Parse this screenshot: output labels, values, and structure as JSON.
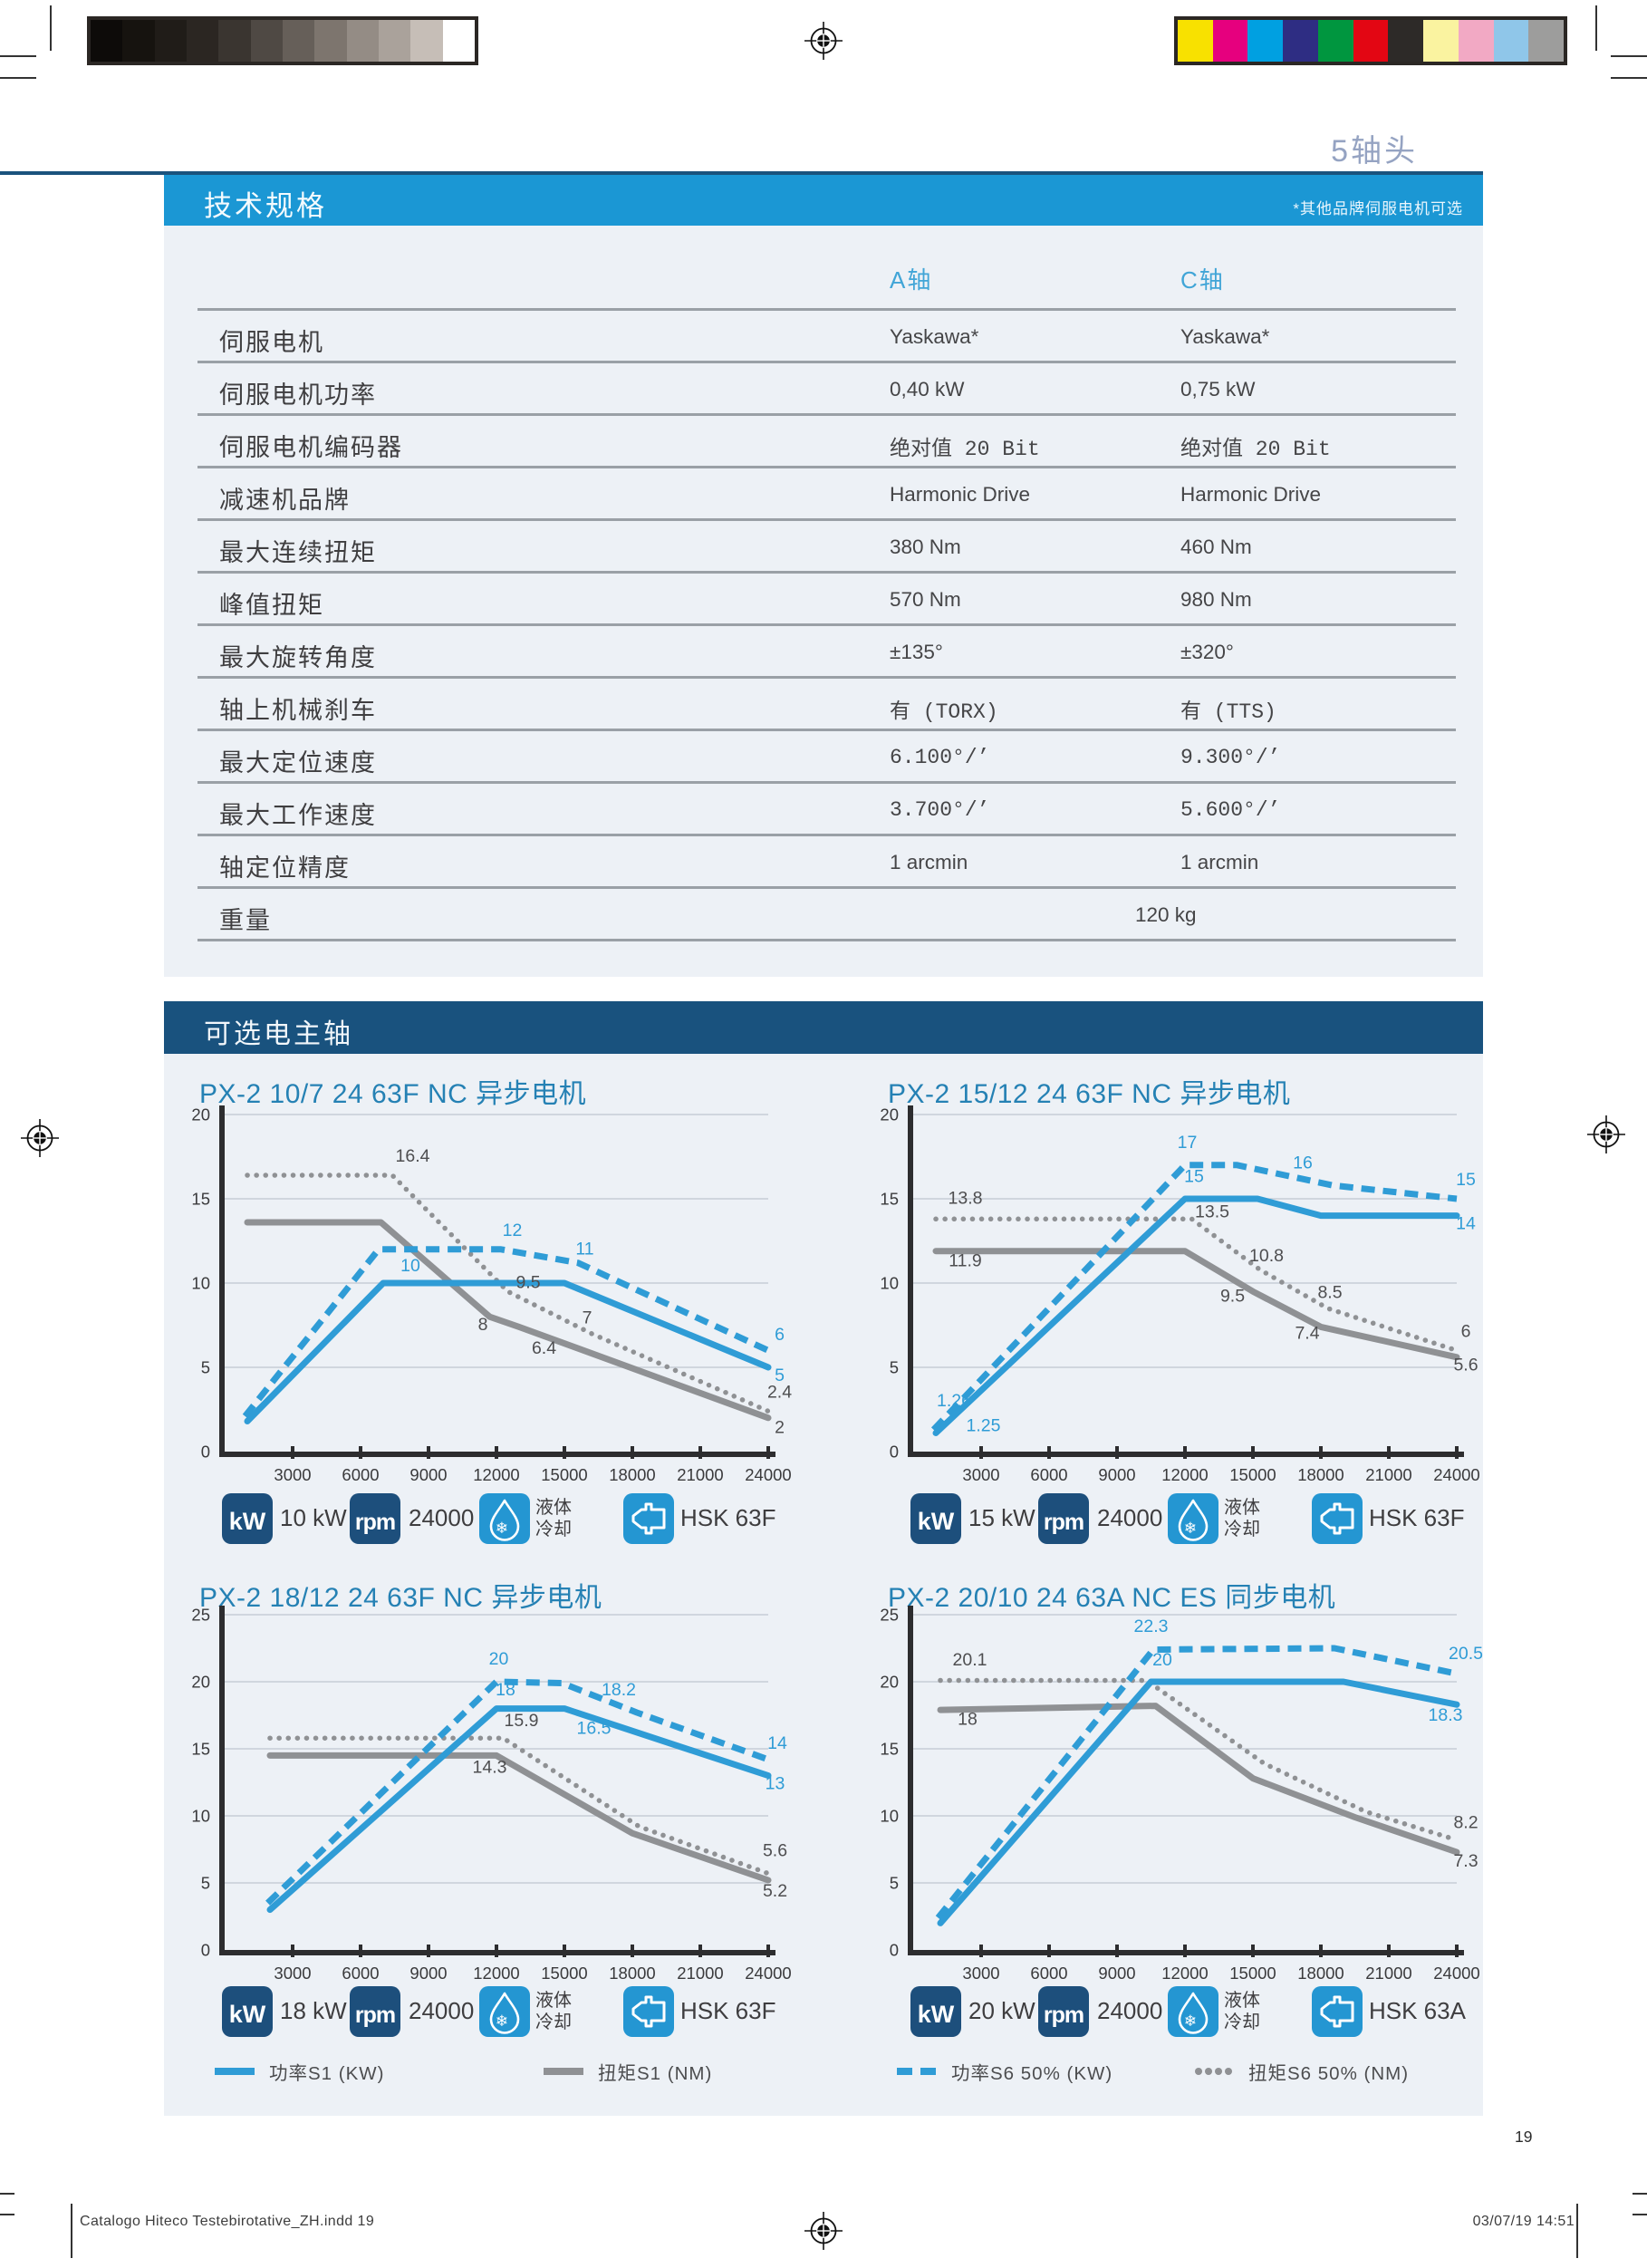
{
  "page": {
    "title": "5轴头",
    "number": "19",
    "footer_left": "Catalogo Hiteco Testebirotative_ZH.indd   19",
    "footer_right": "03/07/19   14:51"
  },
  "colors": {
    "accent_blue": "#1b97d4",
    "navy": "#19527e",
    "rule_navy": "#1a537d",
    "panel_bg": "#edf1f6",
    "curve_blue": "#2f9cd6",
    "curve_gray": "#8f9194",
    "title_blue": "#2581b4",
    "axis_dark": "#2d2d2f",
    "grid_line": "#c7cdd5",
    "value_label_gray": "#4e4e50",
    "column_header_blue": "#41a5d7",
    "page_title_blue": "#95a3c2",
    "icon_navy": "#1d4f7c",
    "icon_blue": "#2496d2"
  },
  "print_marks": {
    "grayscale": [
      "#0d0b09",
      "#16130f",
      "#201c18",
      "#2b2622",
      "#3a3530",
      "#4f4944",
      "#665f59",
      "#7d756e",
      "#948c85",
      "#aaa29b",
      "#c6beb7",
      "#ffffff"
    ],
    "color_patches": [
      "#f8e100",
      "#e6007e",
      "#00a0e1",
      "#2e2d83",
      "#00963f",
      "#e30613",
      "#2d2a28",
      "#faf3a0",
      "#f2a9c4",
      "#8fc6e9",
      "#9d9d9c"
    ]
  },
  "spec": {
    "header": "技术规格",
    "note": "*其他品牌伺服电机可选",
    "col_a": "A轴",
    "col_c": "C轴",
    "rows": [
      {
        "label": "伺服电机",
        "a": "Yaskawa*",
        "c": "Yaskawa*",
        "mono": false
      },
      {
        "label": "伺服电机功率",
        "a": "0,40 kW",
        "c": "0,75 kW",
        "mono": false
      },
      {
        "label": "伺服电机编码器",
        "a": "绝对值 20 Bit",
        "c": "绝对值 20 Bit",
        "mono": true
      },
      {
        "label": "减速机品牌",
        "a": "Harmonic Drive",
        "c": "Harmonic Drive",
        "mono": false
      },
      {
        "label": "最大连续扭矩",
        "a": "380 Nm",
        "c": "460 Nm",
        "mono": false
      },
      {
        "label": "峰值扭矩",
        "a": "570 Nm",
        "c": "980 Nm",
        "mono": false
      },
      {
        "label": "最大旋转角度",
        "a": "±135°",
        "c": "±320°",
        "mono": false
      },
      {
        "label": "轴上机械刹车",
        "a": "有 (TORX)",
        "c": "有 (TTS)",
        "mono": true
      },
      {
        "label": "最大定位速度",
        "a": "6.100°/’",
        "c": "9.300°/’",
        "mono": true
      },
      {
        "label": "最大工作速度",
        "a": "3.700°/’",
        "c": "5.600°/’",
        "mono": true
      },
      {
        "label": "轴定位精度",
        "a": "1 arcmin",
        "c": "1 arcmin",
        "mono": false
      }
    ],
    "weight_row": {
      "label": "重量",
      "value": "120 kg"
    }
  },
  "spindles": {
    "header": "可选电主轴",
    "legend": [
      {
        "style": "power_s1",
        "label": "功率S1 (KW)"
      },
      {
        "style": "torque_s1",
        "label": "扭矩S1 (NM)"
      },
      {
        "style": "power_s6",
        "label": "功率S6 50% (KW)"
      },
      {
        "style": "torque_s6",
        "label": "扭矩S6 50% (NM)"
      }
    ],
    "charts": [
      {
        "title": "PX-2 10/7 24 63F NC 异步电机",
        "type": "line",
        "ymax": 20,
        "yticks": [
          0,
          5,
          10,
          15,
          20
        ],
        "xticks": [
          3000,
          6000,
          9000,
          12000,
          15000,
          18000,
          21000,
          24000
        ],
        "series": [
          {
            "name": "torque_s6",
            "points": [
              [
                1000,
                16.4
              ],
              [
                7400,
                16.4
              ],
              [
                12500,
                9.5
              ],
              [
                16200,
                7
              ],
              [
                24000,
                2.4
              ]
            ]
          },
          {
            "name": "torque_s1",
            "points": [
              [
                1000,
                13.6
              ],
              [
                6900,
                13.6
              ],
              [
                11700,
                8
              ],
              [
                13000,
                7.4
              ],
              [
                24000,
                2
              ]
            ]
          },
          {
            "name": "power_s6",
            "points": [
              [
                900,
                2.1
              ],
              [
                6800,
                12
              ],
              [
                12200,
                12
              ],
              [
                15600,
                11.2
              ],
              [
                24000,
                6
              ]
            ]
          },
          {
            "name": "power_s1",
            "points": [
              [
                1000,
                1.8
              ],
              [
                7000,
                10
              ],
              [
                15000,
                10
              ],
              [
                24000,
                5
              ]
            ]
          }
        ],
        "labels": [
          {
            "text": "16.4",
            "rpm": 8300,
            "val": 17.2,
            "c": "gray"
          },
          {
            "text": "12",
            "rpm": 12700,
            "val": 12.8,
            "c": "blue"
          },
          {
            "text": "11",
            "rpm": 15900,
            "val": 11.7,
            "c": "blue"
          },
          {
            "text": "10",
            "rpm": 8200,
            "val": 10.7,
            "c": "blue"
          },
          {
            "text": "9.5",
            "rpm": 13400,
            "val": 9.7,
            "c": "gray"
          },
          {
            "text": "8",
            "rpm": 11400,
            "val": 7.2,
            "c": "gray"
          },
          {
            "text": "7",
            "rpm": 16000,
            "val": 7.6,
            "c": "gray"
          },
          {
            "text": "6.4",
            "rpm": 14100,
            "val": 5.8,
            "c": "gray"
          },
          {
            "text": "6",
            "rpm": 24500,
            "val": 6.6,
            "c": "blue"
          },
          {
            "text": "5",
            "rpm": 24500,
            "val": 4.2,
            "c": "blue"
          },
          {
            "text": "2.4",
            "rpm": 24500,
            "val": 3.2,
            "c": "gray"
          },
          {
            "text": "2",
            "rpm": 24500,
            "val": 1.1,
            "c": "gray"
          }
        ],
        "icons": {
          "kw": "10 kW",
          "rpm": "24000",
          "cooling": [
            "液体",
            "冷却"
          ],
          "holder": "HSK 63F"
        }
      },
      {
        "title": "PX-2 15/12 24 63F NC 异步电机",
        "type": "line",
        "ymax": 20,
        "yticks": [
          0,
          5,
          10,
          15,
          20
        ],
        "xticks": [
          3000,
          6000,
          9000,
          12000,
          15000,
          18000,
          21000,
          24000
        ],
        "series": [
          {
            "name": "torque_s6",
            "points": [
              [
                1000,
                13.8
              ],
              [
                12300,
                13.8
              ],
              [
                15300,
                10.8
              ],
              [
                18300,
                8.5
              ],
              [
                24000,
                6
              ]
            ]
          },
          {
            "name": "torque_s1",
            "points": [
              [
                1000,
                11.9
              ],
              [
                12000,
                11.9
              ],
              [
                15000,
                9.5
              ],
              [
                18000,
                7.4
              ],
              [
                24000,
                5.6
              ]
            ]
          },
          {
            "name": "power_s6",
            "points": [
              [
                900,
                1.3
              ],
              [
                12000,
                17
              ],
              [
                14300,
                17
              ],
              [
                18500,
                15.8
              ],
              [
                24000,
                15
              ]
            ]
          },
          {
            "name": "power_s1",
            "points": [
              [
                1000,
                1.1
              ],
              [
                12000,
                15
              ],
              [
                15200,
                15
              ],
              [
                18000,
                14
              ],
              [
                24000,
                14
              ]
            ]
          }
        ],
        "labels": [
          {
            "text": "13.8",
            "rpm": 2300,
            "val": 14.7,
            "c": "gray"
          },
          {
            "text": "11.9",
            "rpm": 2300,
            "val": 11.0,
            "c": "gray"
          },
          {
            "text": "1.26",
            "rpm": 1800,
            "val": 2.7,
            "c": "blue"
          },
          {
            "text": "1.25",
            "rpm": 3100,
            "val": 1.2,
            "c": "blue"
          },
          {
            "text": "17",
            "rpm": 12100,
            "val": 18.0,
            "c": "blue"
          },
          {
            "text": "15",
            "rpm": 12400,
            "val": 16.0,
            "c": "blue"
          },
          {
            "text": "16",
            "rpm": 17200,
            "val": 16.8,
            "c": "blue"
          },
          {
            "text": "15",
            "rpm": 24400,
            "val": 15.8,
            "c": "blue"
          },
          {
            "text": "14",
            "rpm": 24400,
            "val": 13.2,
            "c": "blue"
          },
          {
            "text": "13.5",
            "rpm": 13200,
            "val": 13.9,
            "c": "gray"
          },
          {
            "text": "10.8",
            "rpm": 15600,
            "val": 11.3,
            "c": "gray"
          },
          {
            "text": "9.5",
            "rpm": 14100,
            "val": 8.9,
            "c": "gray"
          },
          {
            "text": "8.5",
            "rpm": 18400,
            "val": 9.1,
            "c": "gray"
          },
          {
            "text": "7.4",
            "rpm": 17400,
            "val": 6.7,
            "c": "gray"
          },
          {
            "text": "6",
            "rpm": 24400,
            "val": 6.8,
            "c": "gray"
          },
          {
            "text": "5.6",
            "rpm": 24400,
            "val": 4.8,
            "c": "gray"
          }
        ],
        "icons": {
          "kw": "15 kW",
          "rpm": "24000",
          "cooling": [
            "液体",
            "冷却"
          ],
          "holder": "HSK 63F"
        }
      },
      {
        "title": "PX-2 18/12 24 63F NC 异步电机",
        "type": "line",
        "ymax": 25,
        "yticks": [
          0,
          5,
          10,
          15,
          20,
          25
        ],
        "xticks": [
          3000,
          6000,
          9000,
          12000,
          15000,
          18000,
          21000,
          24000
        ],
        "series": [
          {
            "name": "torque_s6",
            "points": [
              [
                2000,
                15.8
              ],
              [
                12300,
                15.8
              ],
              [
                18300,
                9.2
              ],
              [
                24000,
                5.7
              ]
            ]
          },
          {
            "name": "torque_s1",
            "points": [
              [
                2000,
                14.5
              ],
              [
                12000,
                14.5
              ],
              [
                18000,
                8.7
              ],
              [
                24000,
                5.2
              ]
            ]
          },
          {
            "name": "power_s6",
            "points": [
              [
                1900,
                3.5
              ],
              [
                12000,
                20
              ],
              [
                14900,
                19.9
              ],
              [
                18200,
                17.7
              ],
              [
                24000,
                14.2
              ]
            ]
          },
          {
            "name": "power_s1",
            "points": [
              [
                2000,
                3
              ],
              [
                12000,
                18
              ],
              [
                15000,
                18
              ],
              [
                24000,
                13
              ]
            ]
          }
        ],
        "labels": [
          {
            "text": "20",
            "rpm": 12100,
            "val": 21.3,
            "c": "blue"
          },
          {
            "text": "18",
            "rpm": 12400,
            "val": 19.0,
            "c": "blue"
          },
          {
            "text": "18.2",
            "rpm": 17400,
            "val": 19.0,
            "c": "blue"
          },
          {
            "text": "16.5",
            "rpm": 16300,
            "val": 16.1,
            "c": "blue"
          },
          {
            "text": "15.9",
            "rpm": 13100,
            "val": 16.7,
            "c": "gray"
          },
          {
            "text": "14.3",
            "rpm": 11700,
            "val": 13.2,
            "c": "gray"
          },
          {
            "text": "14",
            "rpm": 24400,
            "val": 15.0,
            "c": "blue"
          },
          {
            "text": "13",
            "rpm": 24300,
            "val": 12.0,
            "c": "blue"
          },
          {
            "text": "5.6",
            "rpm": 24300,
            "val": 7.0,
            "c": "gray"
          },
          {
            "text": "5.2",
            "rpm": 24300,
            "val": 4.0,
            "c": "gray"
          }
        ],
        "icons": {
          "kw": "18 kW",
          "rpm": "24000",
          "cooling": [
            "液体",
            "冷却"
          ],
          "holder": "HSK 63F"
        }
      },
      {
        "title": "PX-2 20/10 24 63A NC ES 同步电机",
        "type": "line",
        "ymax": 25,
        "yticks": [
          0,
          5,
          10,
          15,
          20,
          25
        ],
        "xticks": [
          3000,
          6000,
          9000,
          12000,
          15000,
          18000,
          21000,
          24000
        ],
        "series": [
          {
            "name": "torque_s6",
            "points": [
              [
                1200,
                20.1
              ],
              [
                10300,
                20.1
              ],
              [
                15500,
                13.9
              ],
              [
                20000,
                10.3
              ],
              [
                24000,
                8.2
              ]
            ]
          },
          {
            "name": "torque_s1",
            "points": [
              [
                1200,
                17.9
              ],
              [
                10700,
                18.2
              ],
              [
                15000,
                12.8
              ],
              [
                19500,
                9.9
              ],
              [
                24000,
                7.3
              ]
            ]
          },
          {
            "name": "power_s6",
            "points": [
              [
                1100,
                2.4
              ],
              [
                10600,
                22.4
              ],
              [
                18600,
                22.5
              ],
              [
                24000,
                20.6
              ]
            ]
          },
          {
            "name": "power_s1",
            "points": [
              [
                1200,
                2
              ],
              [
                10500,
                20
              ],
              [
                19000,
                20
              ],
              [
                24000,
                18.3
              ]
            ]
          }
        ],
        "labels": [
          {
            "text": "22.3",
            "rpm": 10500,
            "val": 23.7,
            "c": "blue"
          },
          {
            "text": "20",
            "rpm": 11000,
            "val": 21.2,
            "c": "blue"
          },
          {
            "text": "20.1",
            "rpm": 2500,
            "val": 21.2,
            "c": "gray"
          },
          {
            "text": "18",
            "rpm": 2400,
            "val": 16.8,
            "c": "gray"
          },
          {
            "text": "20.5",
            "rpm": 24400,
            "val": 21.7,
            "c": "blue"
          },
          {
            "text": "18.3",
            "rpm": 23500,
            "val": 17.1,
            "c": "blue"
          },
          {
            "text": "8.2",
            "rpm": 24400,
            "val": 9.1,
            "c": "gray"
          },
          {
            "text": "7.3",
            "rpm": 24400,
            "val": 6.2,
            "c": "gray"
          }
        ],
        "icons": {
          "kw": "20 kW",
          "rpm": "24000",
          "cooling": [
            "液体",
            "冷却"
          ],
          "holder": "HSK 63A"
        }
      }
    ]
  }
}
